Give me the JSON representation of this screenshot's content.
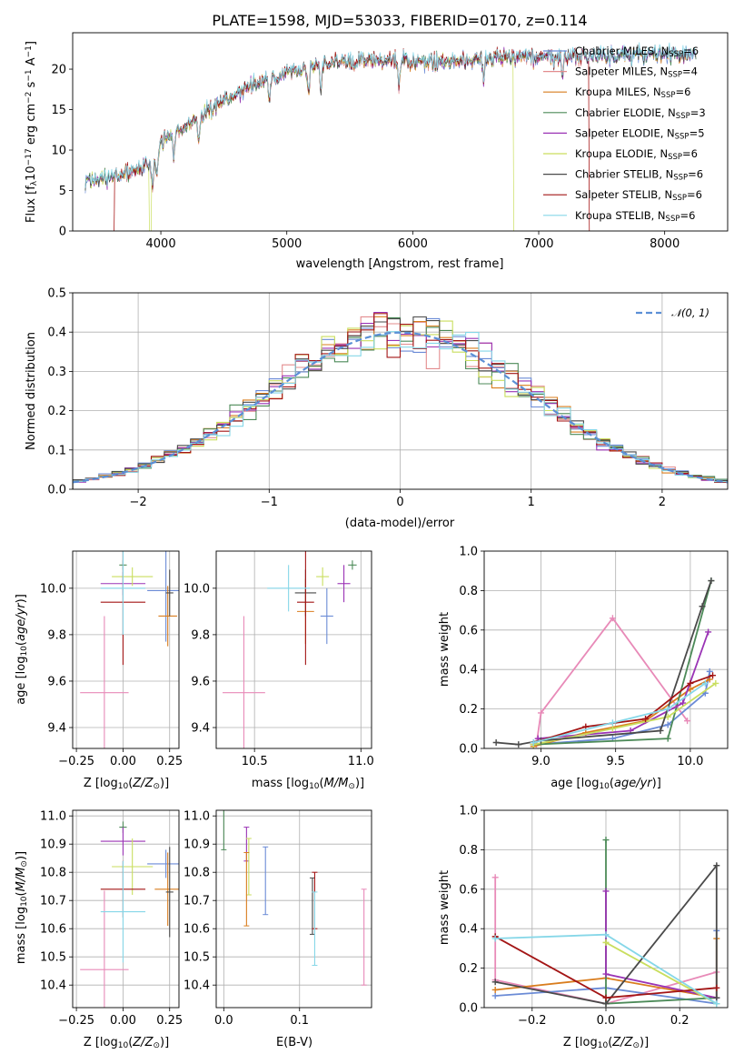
{
  "colors": {
    "Chabrier MILES": "#6b8bd6",
    "Salpeter MILES": "#e38c8e",
    "Kroupa MILES": "#d97d1e",
    "Chabrier ELODIE": "#4c8a58",
    "Salpeter ELODIE": "#9a33b5",
    "Kroupa ELODIE": "#c9de5e",
    "Chabrier STELIB": "#4a4a4a",
    "Salpeter STELIB": "#a31515",
    "Kroupa STELIB": "#86d7e8",
    "pink": "#e88ab8",
    "gauss": "#5b8fd6"
  },
  "chart_data": [
    {
      "id": "spectrum",
      "type": "line",
      "title": "PLATE=1598, MJD=53033, FIBERID=0170, z=0.114",
      "xlabel": "wavelength [Angstrom, rest frame]",
      "ylabel_parts": [
        "Flux [f",
        "λ",
        "10",
        "−17",
        " erg cm",
        "−2",
        " s",
        "−1",
        " A",
        "−1",
        "]"
      ],
      "xlim": [
        3300,
        8500
      ],
      "ylim": [
        0,
        24.5
      ],
      "xticks": [
        4000,
        5000,
        6000,
        7000,
        8000
      ],
      "yticks": [
        0,
        5,
        10,
        15,
        20
      ],
      "continuum_x": [
        3400,
        3600,
        3800,
        3950,
        4000,
        4200,
        4400,
        4600,
        4800,
        5000,
        5200,
        5400,
        5600,
        5800,
        6000,
        6200,
        6400,
        6600,
        6800,
        7000,
        7200,
        7400,
        7600,
        7800,
        8000,
        8250
      ],
      "continuum_y": [
        6.2,
        6.5,
        7.5,
        8.5,
        11,
        13,
        15,
        17,
        18.5,
        19.5,
        20.3,
        20.8,
        21.0,
        21.0,
        21.0,
        21.0,
        21.2,
        21.3,
        21.4,
        21.5,
        21.6,
        21.6,
        21.6,
        21.7,
        21.8,
        21.9
      ],
      "series": [
        {
          "name": "Chabrier MILES",
          "label_prefix": "Chabrier MILES, N",
          "label_value": "=6"
        },
        {
          "name": "Salpeter MILES",
          "label_prefix": "Salpeter MILES, N",
          "label_value": "=4",
          "dropouts": [
            [
              3400,
              3630
            ],
            [
              7400,
              8500
            ]
          ]
        },
        {
          "name": "Kroupa MILES",
          "label_prefix": "Kroupa MILES, N",
          "label_value": "=6"
        },
        {
          "name": "Chabrier ELODIE",
          "label_prefix": "Chabrier ELODIE, N",
          "label_value": "=3"
        },
        {
          "name": "Salpeter ELODIE",
          "label_prefix": "Salpeter ELODIE, N",
          "label_value": "=5"
        },
        {
          "name": "Kroupa ELODIE",
          "label_prefix": "Kroupa ELODIE, N",
          "label_value": "=6",
          "dropouts": [
            [
              3910,
              3925
            ],
            [
              6800,
              8500
            ]
          ]
        },
        {
          "name": "Chabrier STELIB",
          "label_prefix": "Chabrier STELIB, N",
          "label_value": "=6"
        },
        {
          "name": "Salpeter STELIB",
          "label_prefix": "Salpeter STELIB, N",
          "label_value": "=6",
          "dropouts": [
            [
              3400,
              3630
            ],
            [
              7400,
              8500
            ]
          ]
        },
        {
          "name": "Kroupa STELIB",
          "label_prefix": "Kroupa STELIB, N",
          "label_value": "=6"
        }
      ],
      "legend_subscript": "SSP",
      "legend": "top-right"
    },
    {
      "id": "residuals",
      "type": "histogram",
      "xlabel": "(data-model)/error",
      "ylabel": "Normed distribution",
      "xlim": [
        -2.5,
        2.5
      ],
      "ylim": [
        0,
        0.5
      ],
      "xticks": [
        -2,
        -1,
        0,
        1,
        2
      ],
      "yticks": [
        0,
        0.1,
        0.2,
        0.3,
        0.4,
        0.5
      ],
      "bin_width": 0.1,
      "reference_curve": {
        "name": "N(0,1)",
        "legend_text": "𝒩(0, 1)",
        "mean": 0,
        "sigma": 1,
        "style": "dashed"
      },
      "series_order": [
        "Chabrier MILES",
        "Salpeter MILES",
        "Kroupa MILES",
        "Chabrier ELODIE",
        "Salpeter ELODIE",
        "Kroupa ELODIE",
        "Chabrier STELIB",
        "Salpeter STELIB",
        "Kroupa STELIB"
      ],
      "grid": true,
      "legend": "top-right"
    },
    {
      "id": "age-vs-Z",
      "type": "errorbar",
      "xlabel": "Z [log10(Z/Z⊙)]",
      "ylabel": "age [log10(age/yr)]",
      "xlim": [
        -0.27,
        0.3
      ],
      "ylim": [
        9.31,
        10.16
      ],
      "xticks": [
        -0.25,
        0,
        0.25
      ],
      "xticklabels": [
        "−0.25",
        "0.00",
        "0.25"
      ],
      "yticks": [
        9.4,
        9.6,
        9.8,
        10.0
      ],
      "points": [
        {
          "series": "pink",
          "x": -0.1,
          "xerr": 0.13,
          "y": 9.55,
          "yerr": 0.33
        },
        {
          "series": "Chabrier MILES",
          "x": 0.23,
          "xerr": 0.1,
          "y": 9.99,
          "yerr": 0.22
        },
        {
          "series": "Kroupa MILES",
          "x": 0.24,
          "xerr": 0.05,
          "y": 9.88,
          "yerr": 0.13
        },
        {
          "series": "Chabrier ELODIE",
          "x": 0.0,
          "xerr": 0.02,
          "y": 10.1,
          "yerr": 0.02
        },
        {
          "series": "Salpeter ELODIE",
          "x": 0.0,
          "xerr": 0.12,
          "y": 10.02,
          "yerr": 0.05
        },
        {
          "series": "Kroupa ELODIE",
          "x": 0.05,
          "xerr": 0.11,
          "y": 10.05,
          "yerr": 0.04
        },
        {
          "series": "Chabrier STELIB",
          "x": 0.25,
          "xerr": 0.02,
          "y": 9.98,
          "yerr": 0.1
        },
        {
          "series": "Salpeter STELIB",
          "x": 0.0,
          "xerr": 0.12,
          "y": 9.94,
          "yerr": 0.27
        },
        {
          "series": "Kroupa STELIB",
          "x": 0.0,
          "xerr": 0.12,
          "y": 10.0,
          "yerr": 0.2
        }
      ],
      "grid": true
    },
    {
      "id": "age-vs-mass",
      "type": "errorbar",
      "xlabel": "mass [log10(M/M⊙)]",
      "ylabel": "",
      "xlim": [
        10.32,
        11.05
      ],
      "ylim": [
        9.31,
        10.16
      ],
      "xticks": [
        10.5,
        11.0
      ],
      "yticks": [
        9.4,
        9.6,
        9.8,
        10.0
      ],
      "points": [
        {
          "series": "pink",
          "x": 10.45,
          "xerr": 0.1,
          "y": 9.55,
          "yerr": 0.33
        },
        {
          "series": "Chabrier MILES",
          "x": 10.84,
          "xerr": 0.03,
          "y": 9.88,
          "yerr": 0.12
        },
        {
          "series": "Kroupa MILES",
          "x": 10.74,
          "xerr": 0.04,
          "y": 9.9,
          "yerr": 0.14
        },
        {
          "series": "Chabrier ELODIE",
          "x": 10.96,
          "xerr": 0.02,
          "y": 10.1,
          "yerr": 0.02
        },
        {
          "series": "Salpeter ELODIE",
          "x": 10.92,
          "xerr": 0.03,
          "y": 10.02,
          "yerr": 0.08
        },
        {
          "series": "Kroupa ELODIE",
          "x": 10.82,
          "xerr": 0.03,
          "y": 10.05,
          "yerr": 0.04
        },
        {
          "series": "Chabrier STELIB",
          "x": 10.74,
          "xerr": 0.05,
          "y": 9.98,
          "yerr": 0.1
        },
        {
          "series": "Salpeter STELIB",
          "x": 10.74,
          "xerr": 0.04,
          "y": 9.94,
          "yerr": 0.27
        },
        {
          "series": "Kroupa STELIB",
          "x": 10.66,
          "xerr": 0.1,
          "y": 10.0,
          "yerr": 0.1
        }
      ],
      "grid": true
    },
    {
      "id": "weight-vs-age",
      "type": "line",
      "xlabel": "age [log10(age/yr)]",
      "ylabel": "mass weight",
      "xlim": [
        8.62,
        10.25
      ],
      "ylim": [
        0,
        1.0
      ],
      "xticks": [
        9.0,
        9.5,
        10.0
      ],
      "yticks": [
        0,
        0.2,
        0.4,
        0.6,
        0.8,
        1.0
      ],
      "series": [
        {
          "name": "pink",
          "x": [
            8.97,
            9.0,
            9.48,
            9.98
          ],
          "y": [
            0.02,
            0.18,
            0.66,
            0.14
          ]
        },
        {
          "name": "Chabrier MILES",
          "x": [
            8.95,
            9.48,
            9.85,
            10.1,
            10.13
          ],
          "y": [
            0.02,
            0.05,
            0.12,
            0.28,
            0.39
          ]
        },
        {
          "name": "Kroupa MILES",
          "x": [
            8.95,
            9.3,
            9.7,
            10.0,
            10.13
          ],
          "y": [
            0.01,
            0.08,
            0.14,
            0.3,
            0.35
          ]
        },
        {
          "name": "Chabrier ELODIE",
          "x": [
            8.95,
            9.85,
            10.14
          ],
          "y": [
            0.02,
            0.05,
            0.85
          ]
        },
        {
          "name": "Salpeter ELODIE",
          "x": [
            8.98,
            9.6,
            9.95,
            10.12
          ],
          "y": [
            0.05,
            0.09,
            0.23,
            0.59
          ]
        },
        {
          "name": "Kroupa ELODIE",
          "x": [
            8.95,
            9.48,
            9.85,
            10.17
          ],
          "y": [
            0.02,
            0.1,
            0.16,
            0.33
          ]
        },
        {
          "name": "Chabrier STELIB",
          "x": [
            8.7,
            8.85,
            9.0,
            9.8,
            10.08,
            10.14
          ],
          "y": [
            0.03,
            0.02,
            0.04,
            0.09,
            0.72,
            0.85
          ]
        },
        {
          "name": "Salpeter STELIB",
          "x": [
            8.95,
            9.3,
            9.7,
            10.0,
            10.15
          ],
          "y": [
            0.03,
            0.11,
            0.15,
            0.33,
            0.37
          ]
        },
        {
          "name": "Kroupa STELIB",
          "x": [
            8.95,
            9.48,
            9.85,
            10.1
          ],
          "y": [
            0.03,
            0.13,
            0.2,
            0.33
          ]
        }
      ],
      "grid": true
    },
    {
      "id": "mass-vs-Z",
      "type": "errorbar",
      "xlabel": "Z [log10(Z/Z⊙)]",
      "ylabel": "mass [log10(M/M⊙)]",
      "xlim": [
        -0.27,
        0.3
      ],
      "ylim": [
        10.32,
        11.02
      ],
      "xticks": [
        -0.25,
        0,
        0.25
      ],
      "xticklabels": [
        "−0.25",
        "0.00",
        "0.25"
      ],
      "yticks": [
        10.4,
        10.5,
        10.6,
        10.7,
        10.8,
        10.9,
        11.0
      ],
      "points": [
        {
          "series": "pink",
          "x": -0.1,
          "xerr": 0.13,
          "y": 10.455,
          "yerr": 0.28
        },
        {
          "series": "Chabrier MILES",
          "x": 0.23,
          "xerr": 0.1,
          "y": 10.83,
          "yerr": 0.05
        },
        {
          "series": "Kroupa MILES",
          "x": 0.24,
          "xerr": 0.07,
          "y": 10.74,
          "yerr": 0.13
        },
        {
          "series": "Chabrier ELODIE",
          "x": 0.0,
          "xerr": 0.02,
          "y": 10.96,
          "yerr": 0.02
        },
        {
          "series": "Salpeter ELODIE",
          "x": 0.0,
          "xerr": 0.12,
          "y": 10.91,
          "yerr": 0.05
        },
        {
          "series": "Kroupa ELODIE",
          "x": 0.05,
          "xerr": 0.11,
          "y": 10.82,
          "yerr": 0.1
        },
        {
          "series": "Chabrier STELIB",
          "x": 0.25,
          "xerr": 0.02,
          "y": 10.73,
          "yerr": 0.16
        },
        {
          "series": "Salpeter STELIB",
          "x": 0.0,
          "xerr": 0.12,
          "y": 10.74,
          "yerr": 0.1
        },
        {
          "series": "Kroupa STELIB",
          "x": 0.0,
          "xerr": 0.12,
          "y": 10.66,
          "yerr": 0.18
        }
      ],
      "grid": true
    },
    {
      "id": "mass-vs-EBV",
      "type": "errorbar",
      "xlabel": "E(B-V)",
      "ylabel": "",
      "xlim": [
        -0.01,
        0.195
      ],
      "ylim": [
        10.32,
        11.02
      ],
      "xticks": [
        0.0,
        0.1
      ],
      "yticks": [
        10.4,
        10.5,
        10.6,
        10.7,
        10.8,
        10.9,
        11.0
      ],
      "points": [
        {
          "series": "Chabrier ELODIE",
          "x": 0.0,
          "y": 10.96,
          "yerr": 0.08
        },
        {
          "series": "Salpeter ELODIE",
          "x": 0.03,
          "y": 10.9,
          "yerr": 0.06
        },
        {
          "series": "Kroupa ELODIE",
          "x": 0.033,
          "y": 10.82,
          "yerr": 0.1
        },
        {
          "series": "Kroupa MILES",
          "x": 0.03,
          "y": 10.74,
          "yerr": 0.13
        },
        {
          "series": "Chabrier MILES",
          "x": 0.055,
          "y": 10.77,
          "yerr": 0.12
        },
        {
          "series": "Chabrier STELIB",
          "x": 0.117,
          "y": 10.68,
          "yerr": 0.1
        },
        {
          "series": "Salpeter STELIB",
          "x": 0.12,
          "y": 10.7,
          "yerr": 0.1
        },
        {
          "series": "Kroupa STELIB",
          "x": 0.12,
          "y": 10.6,
          "yerr": 0.13
        },
        {
          "series": "pink",
          "x": 0.185,
          "y": 10.57,
          "yerr": 0.17
        }
      ],
      "grid": true
    },
    {
      "id": "weight-vs-Z",
      "type": "line",
      "xlabel": "Z [log10(Z/Z⊙)]",
      "ylabel": "mass weight",
      "xlim": [
        -0.33,
        0.33
      ],
      "ylim": [
        0,
        1.0
      ],
      "xticks": [
        -0.2,
        0.0,
        0.2
      ],
      "xticklabels": [
        "−0.2",
        "0.0",
        "0.2"
      ],
      "yticks": [
        0,
        0.2,
        0.4,
        0.6,
        0.8,
        1.0
      ],
      "series": [
        {
          "name": "pink",
          "x": [
            -0.3,
            -0.3,
            0.0,
            0.3
          ],
          "y": [
            0.66,
            0.14,
            0.02,
            0.18
          ]
        },
        {
          "name": "Chabrier MILES",
          "x": [
            -0.3,
            0.0,
            0.3,
            0.3
          ],
          "y": [
            0.06,
            0.1,
            0.02,
            0.39
          ]
        },
        {
          "name": "Kroupa MILES",
          "x": [
            -0.3,
            0.0,
            0.3,
            0.3
          ],
          "y": [
            0.09,
            0.15,
            0.05,
            0.35
          ]
        },
        {
          "name": "Chabrier ELODIE",
          "x": [
            0.0,
            0.0,
            0.3
          ],
          "y": [
            0.85,
            0.02,
            0.05
          ]
        },
        {
          "name": "Salpeter ELODIE",
          "x": [
            0.0,
            0.0,
            0.3
          ],
          "y": [
            0.59,
            0.17,
            0.05
          ]
        },
        {
          "name": "Kroupa ELODIE",
          "x": [
            0.0,
            0.0,
            0.3
          ],
          "y": [
            0.33,
            0.33,
            0.02
          ]
        },
        {
          "name": "Chabrier STELIB",
          "x": [
            -0.3,
            0.0,
            0.3,
            0.3
          ],
          "y": [
            0.13,
            0.02,
            0.72,
            0.05
          ]
        },
        {
          "name": "Salpeter STELIB",
          "x": [
            -0.3,
            0.0,
            0.3
          ],
          "y": [
            0.36,
            0.05,
            0.1
          ]
        },
        {
          "name": "Kroupa STELIB",
          "x": [
            -0.3,
            0.0,
            0.3
          ],
          "y": [
            0.35,
            0.37,
            0.02
          ]
        }
      ],
      "grid": true
    }
  ]
}
